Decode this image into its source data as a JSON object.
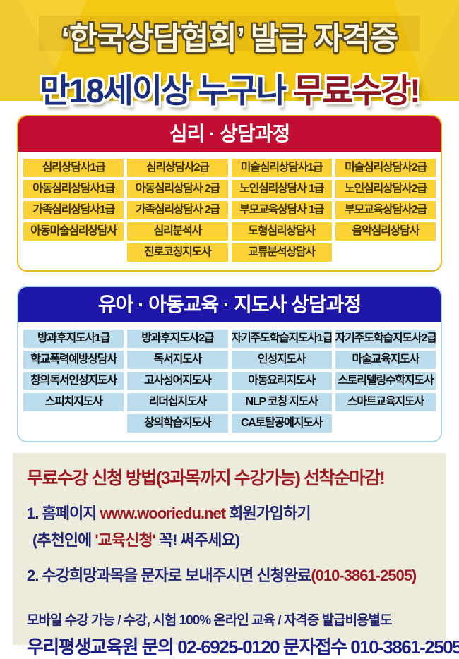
{
  "banner": {
    "line1": "‘한국상담협회’ 발급 자격증",
    "line2_blue": "만18세이상 누구나 ",
    "line2_red": "무료수강!"
  },
  "section_psych": {
    "title": "심리 · 상담과정",
    "items": [
      "심리상담사1급",
      "심리상담사2급",
      "미술심리상담사1급",
      "미술심리상담사2급",
      "아동심리상담사1급",
      "아동심리상담사 2급",
      "노인심리상담사 1급",
      "노인심리상담사2급",
      "가족심리상담사1급",
      "가족심리상담사 2급",
      "부모교육상담사 1급",
      "부모교육상담사2급",
      "아동미술심리상담사",
      "심리분석사",
      "도형심리상담사",
      "음악심리상담사"
    ],
    "last_row": [
      "진로코칭지도사",
      "교류분석상담사"
    ]
  },
  "section_child": {
    "title": "유아 · 아동교육 · 지도사 상담과정",
    "items": [
      "방과후지도사1급",
      "방과후지도사2급",
      "자기주도학습지도사1급",
      "자기주도학습지도사2급",
      "학교폭력예방상담사",
      "독서지도사",
      "인성지도사",
      "마술교육지도사",
      "창의독서인성지도사",
      "고사성어지도사",
      "아동요리지도사",
      "스토리텔링수학지도사",
      "스피치지도사",
      "리더십지도사",
      "NLP 코칭 지도사",
      "스마트교육지도사"
    ],
    "last_row": [
      "창의학습지도사",
      "CA토탈공예지도사"
    ]
  },
  "apply": {
    "title": "무료수강 신청 방법(3과목까지 수강가능) 선착순마감!",
    "step1_pre": "1. 홈페이지 ",
    "step1_url": "www.wooriedu.net",
    "step1_post": " 회원가입하기",
    "note_pre": "(추천인에 ",
    "note_red": "'교육신청'",
    "note_post": " 꼭! 써주세요)",
    "step2_pre": "2. 수강희망과목을 문자로 보내주시면 신청완료",
    "step2_phone": "(010-3861-2505)",
    "info": "모바일 수강 가능 / 수강, 시험 100% 온라인 교육 / 자격증 발급비용별도",
    "contact": "우리평생교육원 문의 02-6925-0120  문자접수 010-3861-2505"
  },
  "colors": {
    "banner_bg": "#F3C913",
    "headline_cream": "#FFF8DF",
    "headline_blue": "#1B2F7E",
    "headline_red": "#8E1520",
    "psych_header_bg": "#C20D32",
    "psych_chip_bg": "#FBD337",
    "child_header_bg": "#1D16A8",
    "child_chip_bg": "#BCDDEE",
    "footer_bg": "#EDEBDB",
    "footer_red": "#9E1B23",
    "footer_navy": "#202673"
  }
}
